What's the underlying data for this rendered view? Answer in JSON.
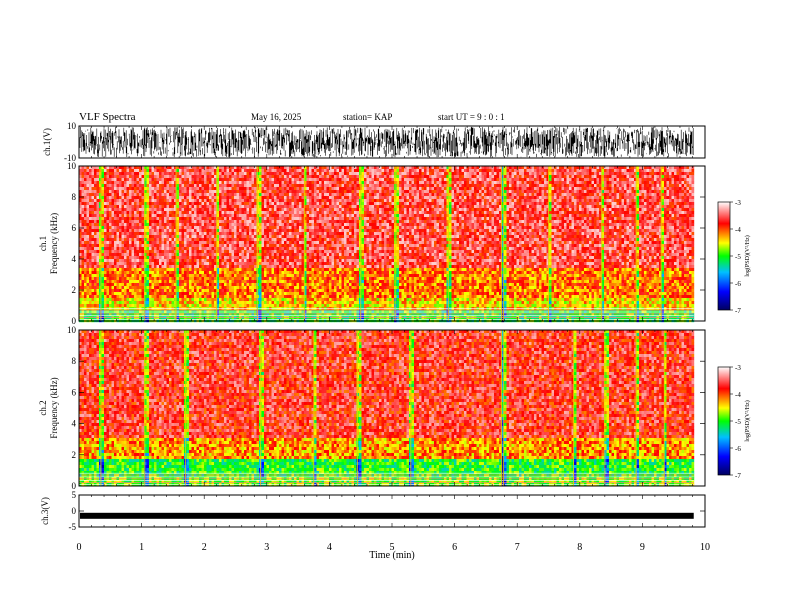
{
  "header": {
    "title": "VLF Spectra",
    "date": "May 16, 2025",
    "station": "station= KAP",
    "start": "start  UT  =   9  : 0  : 1"
  },
  "colors": {
    "spectrogram_stops": [
      "#000060",
      "#0000ff",
      "#00c0ff",
      "#00ff00",
      "#ffff00",
      "#ff0000",
      "#ffffff"
    ],
    "waveform": "#000000",
    "background": "#ffffff"
  },
  "chart_data": [
    {
      "type": "line",
      "panel": "ch1-waveform",
      "ylabel": "ch.1(V)",
      "ylim": [
        -10,
        10
      ],
      "ytick_labels": [
        "10",
        "-10"
      ],
      "xlim": [
        0,
        10
      ],
      "description_values": {
        "amplitude_envelope": [
          -9.5,
          9.5
        ]
      }
    },
    {
      "type": "heatmap",
      "panel": "ch1-spectrogram",
      "ylabel": "ch.1\nFrequency  (kHz)",
      "ylim": [
        0,
        10
      ],
      "ytick_labels": [
        "0",
        "2",
        "4",
        "6",
        "8",
        "10"
      ],
      "xlim": [
        0,
        10
      ],
      "colorbar": {
        "label": "log(PSD)(V²/Hz)",
        "range": [
          -7,
          -3
        ],
        "tick_labels": [
          "-3",
          "-4",
          "-5",
          "-6",
          "-7"
        ]
      },
      "bands": [
        {
          "freq_range": [
            0,
            0.8
          ],
          "level": -5.0
        },
        {
          "freq_range": [
            0.8,
            1.5
          ],
          "level": -4.4
        },
        {
          "freq_range": [
            1.5,
            3.6
          ],
          "level": -4.1
        },
        {
          "freq_range": [
            3.6,
            10
          ],
          "level": -3.6
        }
      ],
      "spike_times_min": [
        0.35,
        1.05,
        1.55,
        2.2,
        2.85,
        3.6,
        4.5,
        5.05,
        5.9,
        6.75,
        6.78,
        7.5,
        8.35,
        8.9,
        9.3
      ]
    },
    {
      "type": "heatmap",
      "panel": "ch2-spectrogram",
      "ylabel": "ch.2\nFrequency  (kHz)",
      "ylim": [
        0,
        10
      ],
      "ytick_labels": [
        "0",
        "2",
        "4",
        "6",
        "8",
        "10"
      ],
      "xlim": [
        0,
        10
      ],
      "colorbar": {
        "label": "log(PSD)(V²/Hz)",
        "range": [
          -7,
          -3
        ],
        "tick_labels": [
          "-3",
          "-4",
          "-5",
          "-6",
          "-7"
        ]
      },
      "bands": [
        {
          "freq_range": [
            0,
            0.6
          ],
          "level": -4.8
        },
        {
          "freq_range": [
            0.6,
            1.9
          ],
          "level": -5.0
        },
        {
          "freq_range": [
            1.9,
            3.2
          ],
          "level": -4.2
        },
        {
          "freq_range": [
            3.2,
            10
          ],
          "level": -3.7
        }
      ],
      "spike_times_min": [
        0.35,
        1.05,
        1.7,
        2.9,
        3.75,
        4.45,
        5.3,
        6.75,
        6.78,
        7.9,
        8.4,
        8.9,
        9.35
      ]
    },
    {
      "type": "line",
      "panel": "ch3-waveform",
      "ylabel": "ch.3(V)",
      "ylim": [
        -5,
        5
      ],
      "ytick_labels": [
        "5",
        "0",
        "-5"
      ],
      "xlim": [
        0,
        10
      ],
      "description_values": {
        "baseline_V": -1.5
      }
    }
  ],
  "xaxis": {
    "label": "Time  (min)",
    "tick_labels": [
      "0",
      "1",
      "2",
      "3",
      "4",
      "5",
      "6",
      "7",
      "8",
      "9",
      "10"
    ],
    "range": [
      0,
      10
    ],
    "data_end": 9.82
  }
}
